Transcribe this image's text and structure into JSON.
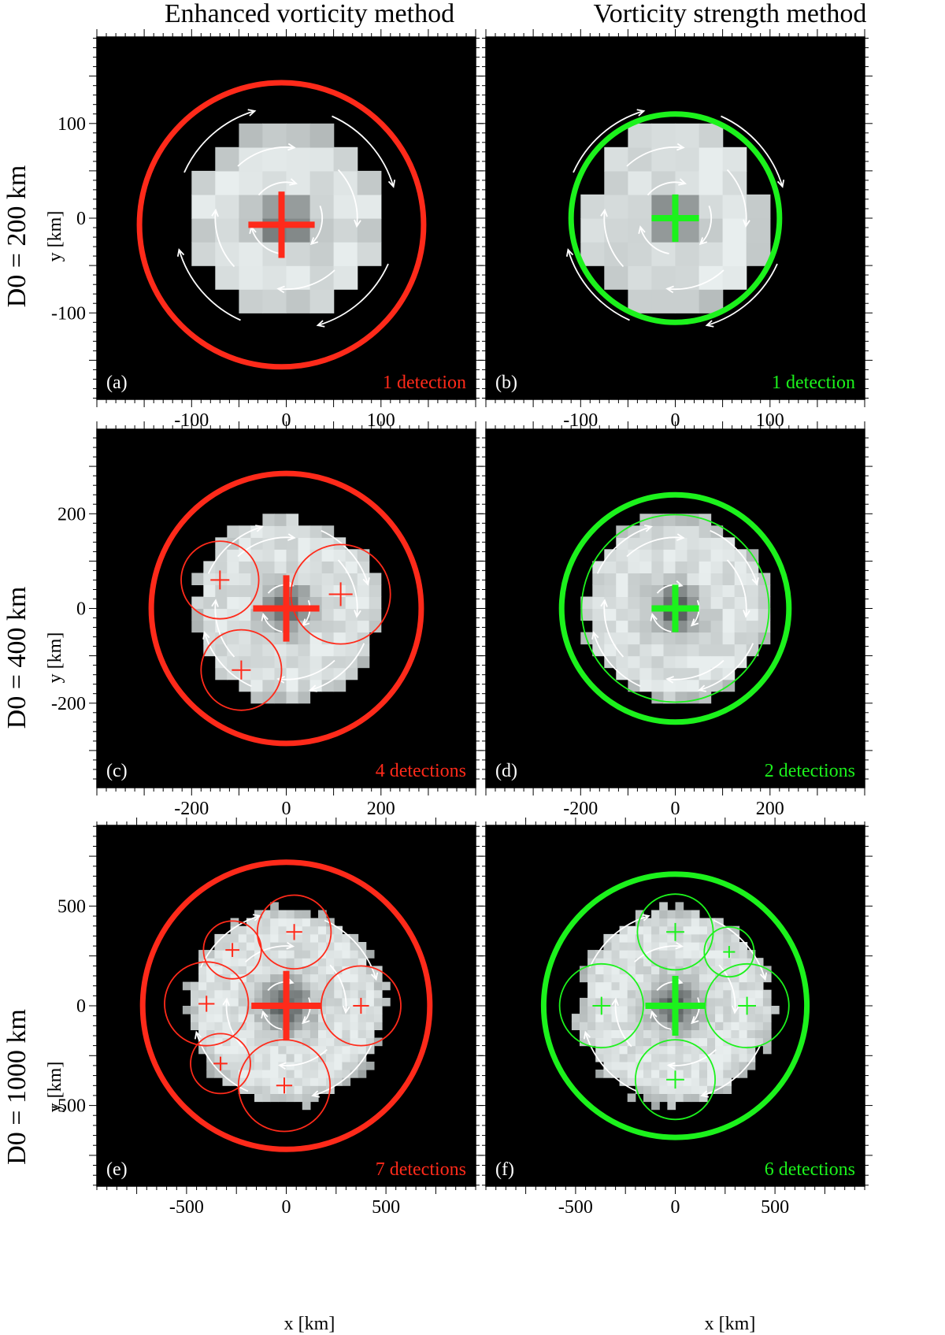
{
  "colors": {
    "enhanced": "#ff2a1a",
    "strength": "#1cf21c",
    "background": "#000000",
    "arrows": "#ffffff"
  },
  "columns": [
    "Enhanced vorticity method",
    "Vorticity strength method"
  ],
  "y_label": "y [km]",
  "x_label": "x [km]",
  "chart_data": [
    {
      "type": "scatter",
      "title": "Enhanced vorticity method",
      "row_label": "D0 = 200 km",
      "panel_label": "(a)",
      "detections_label": "1 detection",
      "method": "enhanced",
      "axis_max": 200,
      "ylim": [
        -200,
        200
      ],
      "xlim": [
        -200,
        200
      ],
      "xticks": [
        -100,
        0,
        100
      ],
      "yticks": [
        -100,
        0,
        100
      ],
      "minor_step": 10,
      "vortex_radius": 100,
      "pixel_km": 25,
      "detections": [
        {
          "x": -5,
          "y": -7,
          "r": 150,
          "main": true,
          "cross": 35
        }
      ],
      "arrows": {
        "inner": 38,
        "mid": 75,
        "outer": 118
      }
    },
    {
      "type": "scatter",
      "title": "Vorticity strength method",
      "row_label": "D0 = 200 km",
      "panel_label": "(b)",
      "detections_label": "1 detection",
      "method": "strength",
      "axis_max": 200,
      "ylim": [
        -200,
        200
      ],
      "xlim": [
        -200,
        200
      ],
      "xticks": [
        -100,
        0,
        100
      ],
      "yticks": [
        -100,
        0,
        100
      ],
      "minor_step": 10,
      "vortex_radius": 100,
      "pixel_km": 25,
      "detections": [
        {
          "x": 0,
          "y": 0,
          "r": 110,
          "main": true,
          "cross": 25
        }
      ],
      "arrows": {
        "inner": 38,
        "mid": 75,
        "outer": 118
      }
    },
    {
      "type": "scatter",
      "title": "Enhanced vorticity method",
      "row_label": "D0 = 400 km",
      "panel_label": "(c)",
      "detections_label": "4 detections",
      "method": "enhanced",
      "axis_max": 400,
      "ylim": [
        -400,
        400
      ],
      "xlim": [
        -400,
        400
      ],
      "xticks": [
        -200,
        0,
        200
      ],
      "yticks": [
        -200,
        0,
        200
      ],
      "minor_step": 20,
      "vortex_radius": 200,
      "pixel_km": 25,
      "detections": [
        {
          "x": 0,
          "y": 0,
          "r": 285,
          "main": true,
          "cross": 70
        },
        {
          "x": -140,
          "y": 60,
          "r": 82,
          "main": false,
          "cross": 20
        },
        {
          "x": 115,
          "y": 30,
          "r": 105,
          "main": false,
          "cross": 25
        },
        {
          "x": -95,
          "y": -130,
          "r": 85,
          "main": false,
          "cross": 20
        }
      ],
      "arrows": {
        "inner": 50,
        "mid": 150,
        "outer": 180
      }
    },
    {
      "type": "scatter",
      "title": "Vorticity strength method",
      "row_label": "D0 = 400 km",
      "panel_label": "(d)",
      "detections_label": "2 detections",
      "method": "strength",
      "axis_max": 400,
      "ylim": [
        -400,
        400
      ],
      "xlim": [
        -400,
        400
      ],
      "xticks": [
        -200,
        0,
        200
      ],
      "yticks": [
        -200,
        0,
        200
      ],
      "minor_step": 20,
      "vortex_radius": 200,
      "pixel_km": 25,
      "detections": [
        {
          "x": 0,
          "y": 0,
          "r": 240,
          "main": true,
          "cross": 50
        },
        {
          "x": 0,
          "y": 0,
          "r": 198,
          "main": false,
          "cross": 0
        }
      ],
      "arrows": {
        "inner": 50,
        "mid": 150,
        "outer": 180
      }
    },
    {
      "type": "scatter",
      "title": "Enhanced vorticity method",
      "row_label": "D0 = 1000 km",
      "panel_label": "(e)",
      "detections_label": "7 detections",
      "method": "enhanced",
      "axis_max": 950,
      "ylim": [
        -950,
        950
      ],
      "xlim": [
        -950,
        950
      ],
      "xticks": [
        -500,
        0,
        500
      ],
      "yticks": [
        -500,
        0,
        500
      ],
      "minor_step": 50,
      "vortex_radius": 500,
      "pixel_km": 40,
      "detections": [
        {
          "x": 0,
          "y": 0,
          "r": 720,
          "main": true,
          "cross": 175
        },
        {
          "x": 40,
          "y": 370,
          "r": 185,
          "main": false,
          "cross": 40
        },
        {
          "x": -270,
          "y": 280,
          "r": 145,
          "main": false,
          "cross": 35
        },
        {
          "x": -400,
          "y": 10,
          "r": 210,
          "main": false,
          "cross": 40
        },
        {
          "x": 375,
          "y": 0,
          "r": 200,
          "main": false,
          "cross": 40
        },
        {
          "x": -330,
          "y": -290,
          "r": 150,
          "main": false,
          "cross": 35
        },
        {
          "x": -10,
          "y": -400,
          "r": 230,
          "main": false,
          "cross": 40
        }
      ],
      "arrows": {
        "inner": 120,
        "mid": 300,
        "outer": 470
      }
    },
    {
      "type": "scatter",
      "title": "Vorticity strength method",
      "row_label": "D0 = 1000 km",
      "panel_label": "(f)",
      "detections_label": "6 detections",
      "method": "strength",
      "axis_max": 950,
      "ylim": [
        -950,
        950
      ],
      "xlim": [
        -950,
        950
      ],
      "xticks": [
        -500,
        0,
        500
      ],
      "yticks": [
        -500,
        0,
        500
      ],
      "minor_step": 50,
      "vortex_radius": 500,
      "pixel_km": 40,
      "detections": [
        {
          "x": 0,
          "y": 0,
          "r": 660,
          "main": true,
          "cross": 150
        },
        {
          "x": 0,
          "y": 370,
          "r": 190,
          "main": false,
          "cross": 45
        },
        {
          "x": 270,
          "y": 270,
          "r": 125,
          "main": false,
          "cross": 30
        },
        {
          "x": -370,
          "y": 0,
          "r": 210,
          "main": false,
          "cross": 45
        },
        {
          "x": 360,
          "y": 0,
          "r": 210,
          "main": false,
          "cross": 45
        },
        {
          "x": 0,
          "y": -370,
          "r": 200,
          "main": false,
          "cross": 45
        }
      ],
      "arrows": {
        "inner": 120,
        "mid": 300,
        "outer": 470
      }
    }
  ]
}
